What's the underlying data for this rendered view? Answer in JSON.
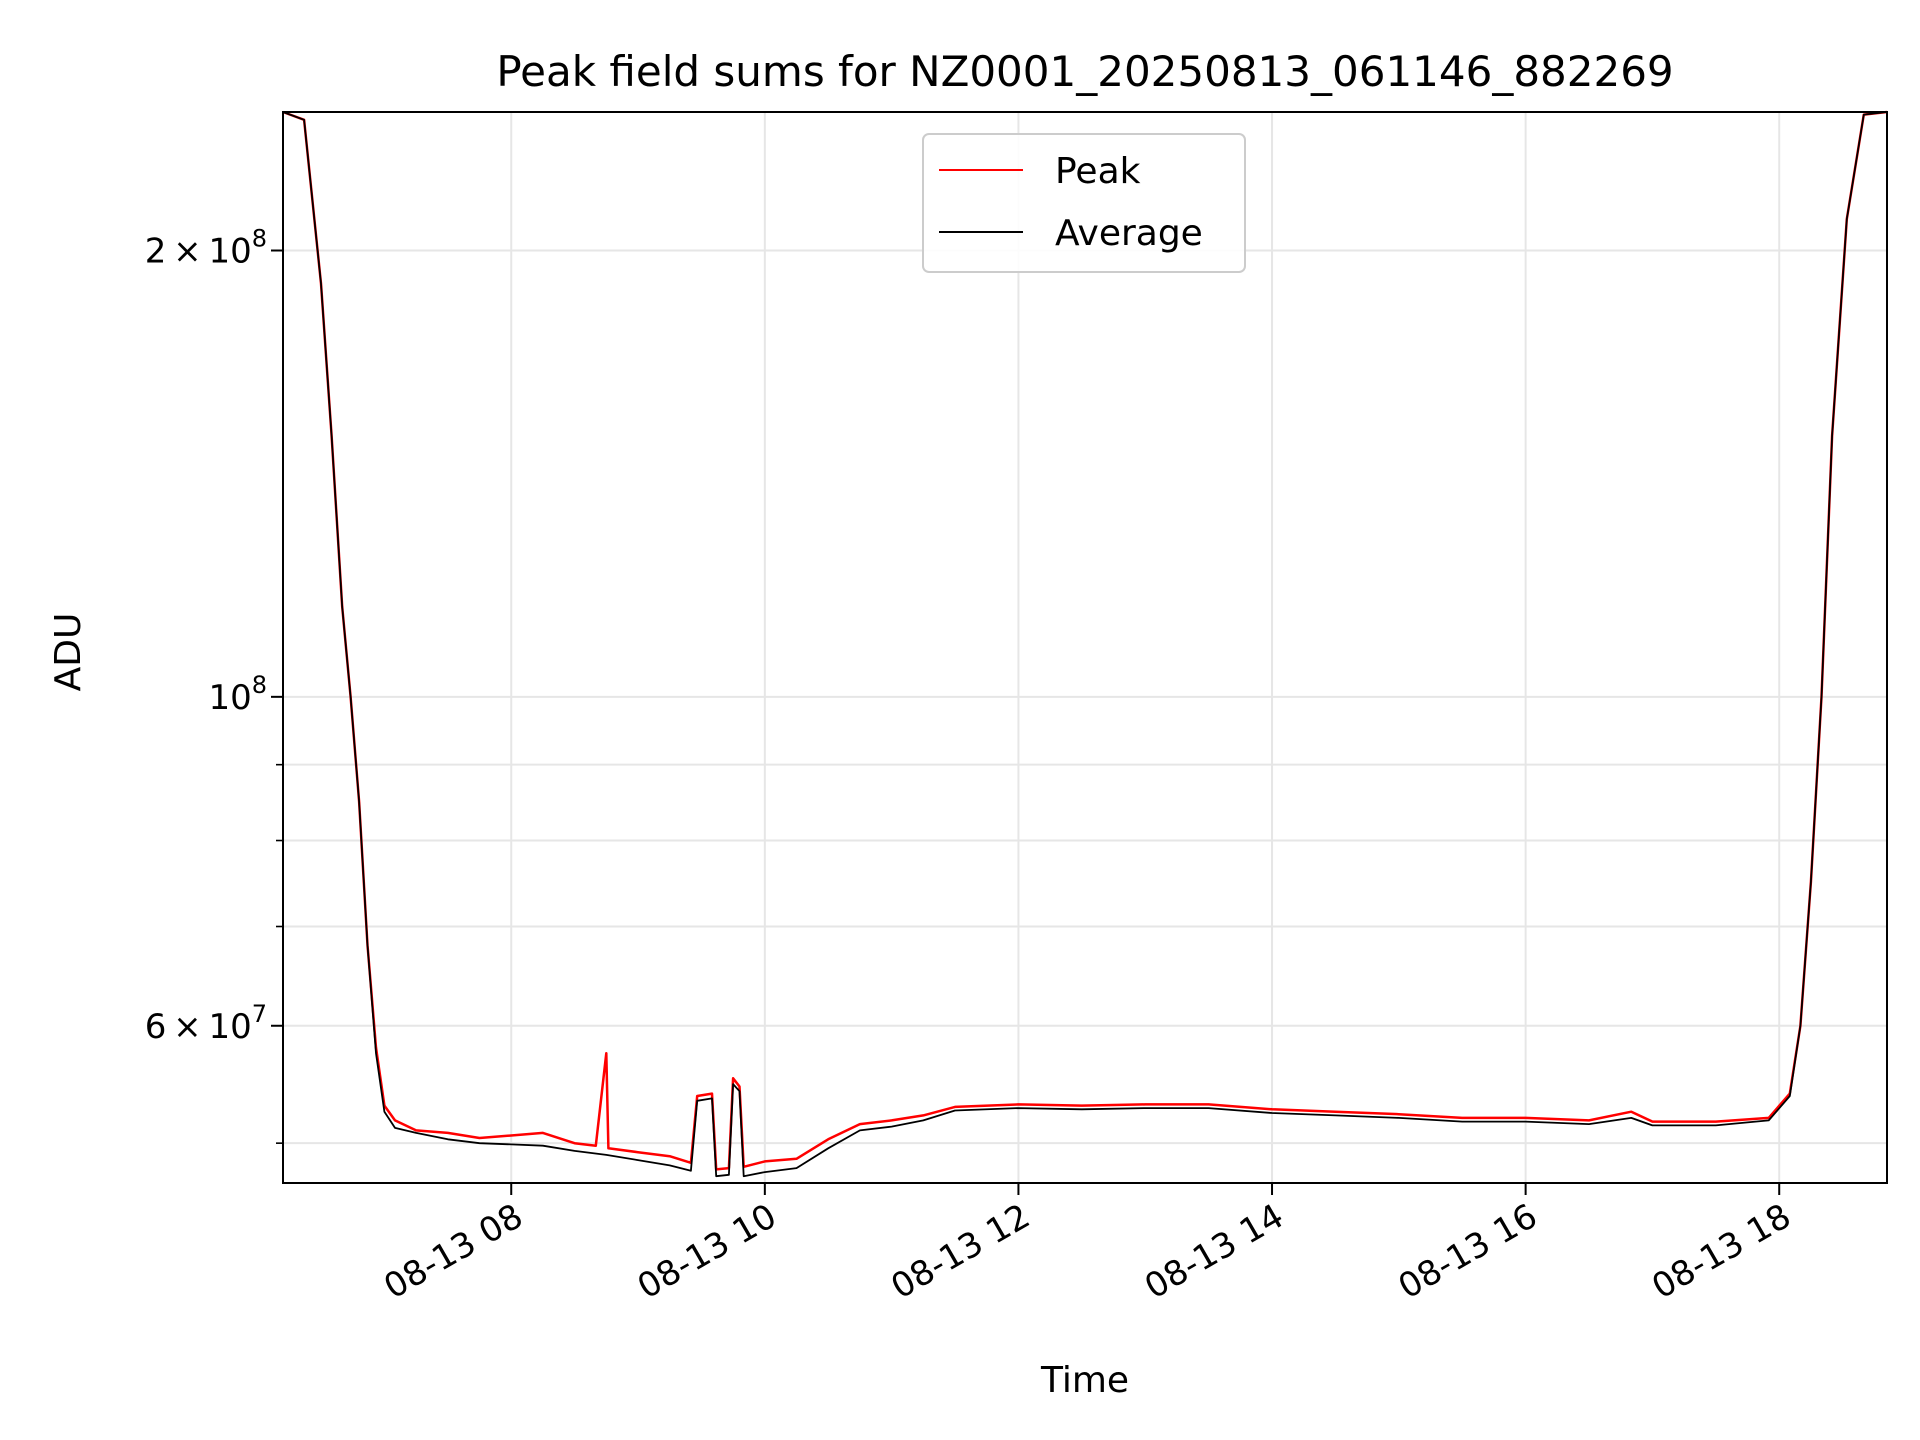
{
  "chart_data": {
    "type": "line",
    "title": "Peak field sums for NZ0001_20250813_061146_882269",
    "xlabel": "Time",
    "ylabel": "ADU",
    "xscale": "time",
    "yscale": "log",
    "xlim": [
      "2025-08-13 06:12",
      "2025-08-13 18:51"
    ],
    "ylim": [
      47000000,
      248000000
    ],
    "grid": true,
    "legend_position": "top-center",
    "x_ticks": [
      {
        "value": "2025-08-13 08:00",
        "label": "08-13 08"
      },
      {
        "value": "2025-08-13 10:00",
        "label": "08-13 10"
      },
      {
        "value": "2025-08-13 12:00",
        "label": "08-13 12"
      },
      {
        "value": "2025-08-13 14:00",
        "label": "08-13 14"
      },
      {
        "value": "2025-08-13 16:00",
        "label": "08-13 16"
      },
      {
        "value": "2025-08-13 18:00",
        "label": "08-13 18"
      }
    ],
    "y_major_ticks": [
      {
        "value": 200000000,
        "mantissa": "2",
        "exponent": "8"
      },
      {
        "value": 100000000,
        "mantissa": "",
        "exponent": "8"
      },
      {
        "value": 60000000,
        "mantissa": "6",
        "exponent": "7"
      }
    ],
    "y_minor_ticks": [
      50000000,
      70000000,
      80000000,
      90000000
    ],
    "series": [
      {
        "name": "Peak",
        "color": "#ff0000",
        "points": [
          [
            "2025-08-13 06:12",
            248000000
          ],
          [
            "2025-08-13 06:22",
            245000000
          ],
          [
            "2025-08-13 06:30",
            190000000
          ],
          [
            "2025-08-13 06:35",
            150000000
          ],
          [
            "2025-08-13 06:40",
            115000000
          ],
          [
            "2025-08-13 06:44",
            100000000
          ],
          [
            "2025-08-13 06:48",
            85000000
          ],
          [
            "2025-08-13 06:52",
            68000000
          ],
          [
            "2025-08-13 06:56",
            58000000
          ],
          [
            "2025-08-13 07:00",
            53000000
          ],
          [
            "2025-08-13 07:05",
            51800000
          ],
          [
            "2025-08-13 07:15",
            51000000
          ],
          [
            "2025-08-13 07:30",
            50800000
          ],
          [
            "2025-08-13 07:45",
            50400000
          ],
          [
            "2025-08-13 08:00",
            50600000
          ],
          [
            "2025-08-13 08:15",
            50800000
          ],
          [
            "2025-08-13 08:30",
            50000000
          ],
          [
            "2025-08-13 08:40",
            49800000
          ],
          [
            "2025-08-13 08:45",
            57500000
          ],
          [
            "2025-08-13 08:46",
            49600000
          ],
          [
            "2025-08-13 09:00",
            49300000
          ],
          [
            "2025-08-13 09:15",
            49000000
          ],
          [
            "2025-08-13 09:25",
            48500000
          ],
          [
            "2025-08-13 09:28",
            53800000
          ],
          [
            "2025-08-13 09:35",
            54000000
          ],
          [
            "2025-08-13 09:37",
            48000000
          ],
          [
            "2025-08-13 09:43",
            48100000
          ],
          [
            "2025-08-13 09:45",
            55300000
          ],
          [
            "2025-08-13 09:48",
            54600000
          ],
          [
            "2025-08-13 09:50",
            48200000
          ],
          [
            "2025-08-13 10:00",
            48600000
          ],
          [
            "2025-08-13 10:15",
            48800000
          ],
          [
            "2025-08-13 10:30",
            50300000
          ],
          [
            "2025-08-13 10:45",
            51500000
          ],
          [
            "2025-08-13 11:00",
            51800000
          ],
          [
            "2025-08-13 11:15",
            52200000
          ],
          [
            "2025-08-13 11:30",
            52900000
          ],
          [
            "2025-08-13 12:00",
            53100000
          ],
          [
            "2025-08-13 12:30",
            53000000
          ],
          [
            "2025-08-13 13:00",
            53100000
          ],
          [
            "2025-08-13 13:30",
            53100000
          ],
          [
            "2025-08-13 14:00",
            52700000
          ],
          [
            "2025-08-13 14:30",
            52500000
          ],
          [
            "2025-08-13 15:00",
            52300000
          ],
          [
            "2025-08-13 15:30",
            52000000
          ],
          [
            "2025-08-13 16:00",
            52000000
          ],
          [
            "2025-08-13 16:30",
            51800000
          ],
          [
            "2025-08-13 16:50",
            52500000
          ],
          [
            "2025-08-13 17:00",
            51700000
          ],
          [
            "2025-08-13 17:30",
            51700000
          ],
          [
            "2025-08-13 17:55",
            52000000
          ],
          [
            "2025-08-13 18:05",
            54000000
          ],
          [
            "2025-08-13 18:10",
            60000000
          ],
          [
            "2025-08-13 18:15",
            75000000
          ],
          [
            "2025-08-13 18:20",
            100000000
          ],
          [
            "2025-08-13 18:25",
            150000000
          ],
          [
            "2025-08-13 18:32",
            210000000
          ],
          [
            "2025-08-13 18:40",
            247000000
          ],
          [
            "2025-08-13 18:51",
            248000000
          ]
        ]
      },
      {
        "name": "Average",
        "color": "#000000",
        "points": [
          [
            "2025-08-13 06:12",
            248000000
          ],
          [
            "2025-08-13 06:22",
            245000000
          ],
          [
            "2025-08-13 06:30",
            190000000
          ],
          [
            "2025-08-13 06:35",
            150000000
          ],
          [
            "2025-08-13 06:40",
            115000000
          ],
          [
            "2025-08-13 06:44",
            100000000
          ],
          [
            "2025-08-13 06:48",
            85000000
          ],
          [
            "2025-08-13 06:52",
            68000000
          ],
          [
            "2025-08-13 06:56",
            57500000
          ],
          [
            "2025-08-13 07:00",
            52500000
          ],
          [
            "2025-08-13 07:05",
            51200000
          ],
          [
            "2025-08-13 07:15",
            50800000
          ],
          [
            "2025-08-13 07:30",
            50300000
          ],
          [
            "2025-08-13 07:45",
            50000000
          ],
          [
            "2025-08-13 08:00",
            49900000
          ],
          [
            "2025-08-13 08:15",
            49800000
          ],
          [
            "2025-08-13 08:30",
            49400000
          ],
          [
            "2025-08-13 08:45",
            49100000
          ],
          [
            "2025-08-13 09:00",
            48700000
          ],
          [
            "2025-08-13 09:15",
            48300000
          ],
          [
            "2025-08-13 09:25",
            47900000
          ],
          [
            "2025-08-13 09:28",
            53400000
          ],
          [
            "2025-08-13 09:35",
            53600000
          ],
          [
            "2025-08-13 09:37",
            47500000
          ],
          [
            "2025-08-13 09:43",
            47600000
          ],
          [
            "2025-08-13 09:45",
            54800000
          ],
          [
            "2025-08-13 09:48",
            54200000
          ],
          [
            "2025-08-13 09:50",
            47500000
          ],
          [
            "2025-08-13 10:00",
            47800000
          ],
          [
            "2025-08-13 10:15",
            48100000
          ],
          [
            "2025-08-13 10:30",
            49600000
          ],
          [
            "2025-08-13 10:45",
            51000000
          ],
          [
            "2025-08-13 11:00",
            51300000
          ],
          [
            "2025-08-13 11:15",
            51800000
          ],
          [
            "2025-08-13 11:30",
            52600000
          ],
          [
            "2025-08-13 12:00",
            52800000
          ],
          [
            "2025-08-13 12:30",
            52700000
          ],
          [
            "2025-08-13 13:00",
            52800000
          ],
          [
            "2025-08-13 13:30",
            52800000
          ],
          [
            "2025-08-13 14:00",
            52400000
          ],
          [
            "2025-08-13 14:30",
            52200000
          ],
          [
            "2025-08-13 15:00",
            52000000
          ],
          [
            "2025-08-13 15:30",
            51700000
          ],
          [
            "2025-08-13 16:00",
            51700000
          ],
          [
            "2025-08-13 16:30",
            51500000
          ],
          [
            "2025-08-13 16:50",
            52000000
          ],
          [
            "2025-08-13 17:00",
            51400000
          ],
          [
            "2025-08-13 17:30",
            51400000
          ],
          [
            "2025-08-13 17:55",
            51800000
          ],
          [
            "2025-08-13 18:05",
            53800000
          ],
          [
            "2025-08-13 18:10",
            60000000
          ],
          [
            "2025-08-13 18:15",
            75000000
          ],
          [
            "2025-08-13 18:20",
            100000000
          ],
          [
            "2025-08-13 18:25",
            150000000
          ],
          [
            "2025-08-13 18:32",
            210000000
          ],
          [
            "2025-08-13 18:40",
            247000000
          ],
          [
            "2025-08-13 18:51",
            248000000
          ]
        ]
      }
    ]
  }
}
